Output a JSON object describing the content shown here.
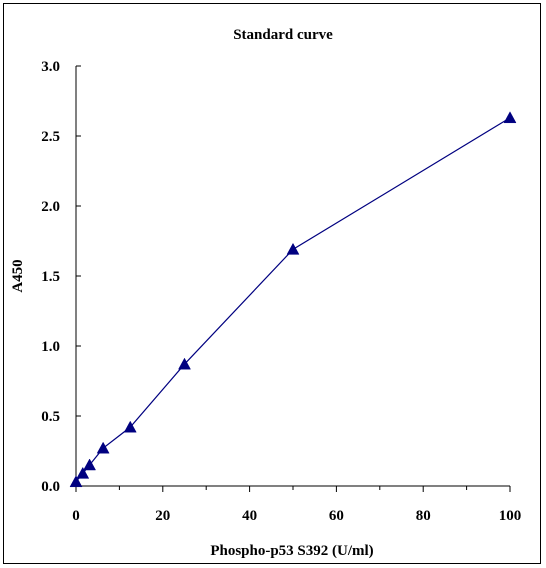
{
  "chart_data": {
    "type": "line",
    "title": "Standard curve",
    "xlabel": "Phospho-p53 S392 (U/ml)",
    "ylabel": "A450",
    "xlim": [
      0,
      100
    ],
    "ylim": [
      0,
      3.0
    ],
    "xticks": [
      "0",
      "20",
      "40",
      "60",
      "80",
      "100"
    ],
    "yticks": [
      "0.0",
      "0.5",
      "1.0",
      "1.5",
      "2.0",
      "2.5",
      "3.0"
    ],
    "grid": false,
    "legend": "none",
    "marker": "triangle",
    "color": "#000080",
    "series": [
      {
        "x": [
          0,
          1.56,
          3.13,
          6.25,
          12.5,
          25,
          50,
          100
        ],
        "y": [
          0.03,
          0.09,
          0.15,
          0.27,
          0.42,
          0.87,
          1.69,
          2.63
        ]
      }
    ]
  }
}
